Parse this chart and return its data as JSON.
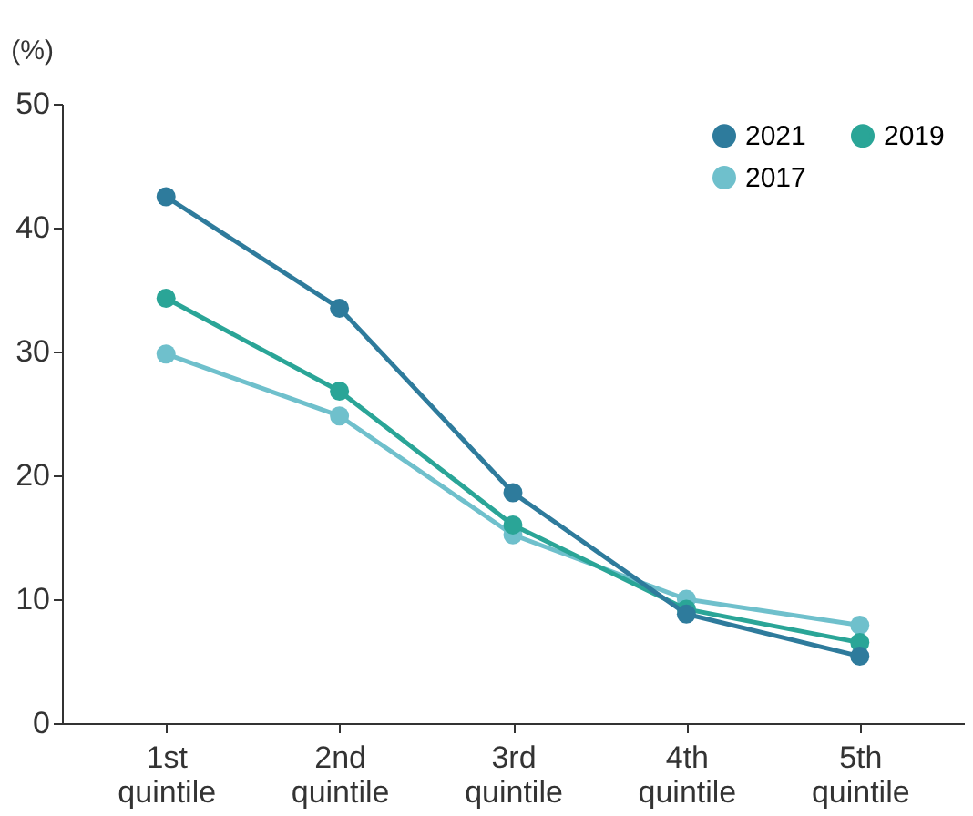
{
  "chart_data": {
    "type": "line",
    "ylabel": "(%)",
    "categories": [
      "1st\nquintile",
      "2nd\nquintile",
      "3rd\nquintile",
      "4th\nquintile",
      "5th\nquintile"
    ],
    "series": [
      {
        "name": "2021",
        "color": "#2e7b9c",
        "values": [
          42.5,
          33.5,
          18.6,
          8.8,
          5.4
        ]
      },
      {
        "name": "2019",
        "color": "#2aa597",
        "values": [
          34.3,
          26.8,
          16.0,
          9.2,
          6.5
        ]
      },
      {
        "name": "2017",
        "color": "#6fc0cc",
        "values": [
          29.8,
          24.8,
          15.2,
          10.0,
          7.9
        ]
      }
    ],
    "ylim": [
      0,
      50
    ],
    "yticks": [
      0,
      10,
      20,
      30,
      40,
      50
    ],
    "grid": false,
    "legend": "top right",
    "marker": "circle",
    "line_style": "solid"
  }
}
